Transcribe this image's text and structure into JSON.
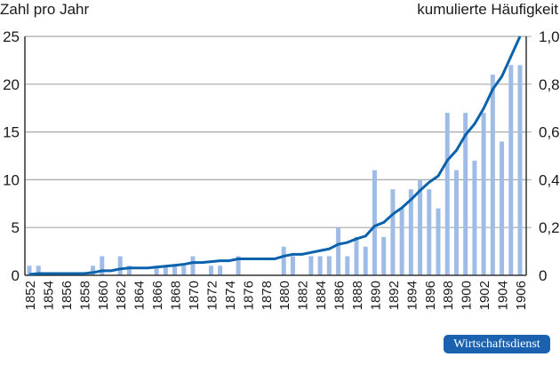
{
  "labels": {
    "left_axis": "Zahl pro Jahr",
    "right_axis": "kumulierte Häufigkeit",
    "source_badge": "Wirtschaftsdienst"
  },
  "colors": {
    "bars": "#9fbce6",
    "line": "#0a62ad",
    "grid": "#a8a8a8",
    "axis": "#333333",
    "badge": "#1a62b0"
  },
  "chart_data": {
    "type": "bar",
    "title": "",
    "xlabel": "",
    "ylabel": "Zahl pro Jahr",
    "ylabel_right": "kumulierte Häufigkeit",
    "ylim": [
      0,
      25
    ],
    "ylim_right": [
      0,
      1.0
    ],
    "yticks": [
      0,
      5,
      10,
      15,
      20,
      25
    ],
    "yticks_right": [
      "0",
      "0,2",
      "0,4",
      "0,6",
      "0,8",
      "1,0"
    ],
    "grid": true,
    "x_tick_labels": [
      "1852",
      "1854",
      "1856",
      "1858",
      "1860",
      "1862",
      "1864",
      "1866",
      "1868",
      "1870",
      "1872",
      "1874",
      "1876",
      "1878",
      "1880",
      "1882",
      "1884",
      "1886",
      "1888",
      "1890",
      "1892",
      "1894",
      "1896",
      "1898",
      "1900",
      "1902",
      "1904",
      "1906"
    ],
    "categories": [
      1852,
      1853,
      1854,
      1855,
      1856,
      1857,
      1858,
      1859,
      1860,
      1861,
      1862,
      1863,
      1864,
      1865,
      1866,
      1867,
      1868,
      1869,
      1870,
      1871,
      1872,
      1873,
      1874,
      1875,
      1876,
      1877,
      1878,
      1879,
      1880,
      1881,
      1882,
      1883,
      1884,
      1885,
      1886,
      1887,
      1888,
      1889,
      1890,
      1891,
      1892,
      1893,
      1894,
      1895,
      1896,
      1897,
      1898,
      1899,
      1900,
      1901,
      1902,
      1903,
      1904,
      1905,
      1906
    ],
    "series": [
      {
        "name": "Zahl pro Jahr",
        "type": "bar",
        "axis": "left",
        "values": [
          1,
          1,
          0,
          0,
          0,
          0,
          0,
          1,
          2,
          0,
          2,
          1,
          0,
          0,
          1,
          1,
          1,
          1,
          2,
          0,
          1,
          1,
          0,
          2,
          0,
          0,
          0,
          0,
          3,
          2,
          0,
          2,
          2,
          2,
          5,
          2,
          4,
          3,
          11,
          4,
          9,
          7,
          9,
          10,
          9,
          7,
          17,
          11,
          17,
          12,
          17,
          21,
          14,
          22,
          22
        ]
      },
      {
        "name": "kumulierte Häufigkeit",
        "type": "line",
        "axis": "right",
        "values": "cumulative share of bar totals (0 → 1,0)"
      }
    ]
  }
}
